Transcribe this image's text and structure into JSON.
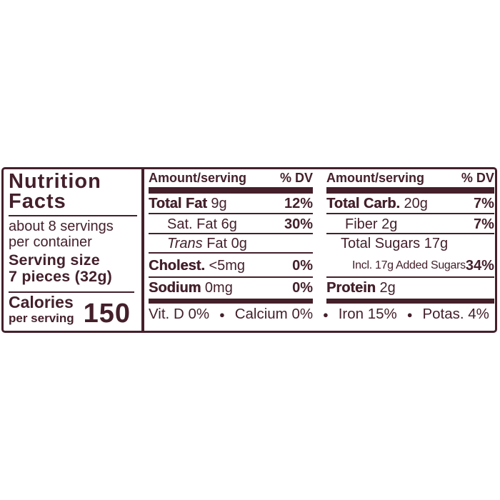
{
  "colors": {
    "ink": "#44202b",
    "background": "#ffffff"
  },
  "nutrition_panel": {
    "title_line1": "Nutrition",
    "title_line2": "Facts",
    "servings_line1": "about 8 servings",
    "servings_line2": "per container",
    "serving_size_label": "Serving size",
    "serving_size_value": "7 pieces (32g)",
    "calories_label": "Calories",
    "calories_sublabel": "per serving",
    "calories_value": "150"
  },
  "fat_column": {
    "header": {
      "amount": "Amount/serving",
      "dv": "% DV"
    },
    "rows": [
      {
        "name": "Total Fat",
        "amount": "9g",
        "dv": "12%"
      },
      {
        "name": "Sat. Fat",
        "amount": "6g",
        "dv": "30%"
      },
      {
        "name_italic": "Trans",
        "name": "Fat",
        "amount": "0g",
        "dv": ""
      },
      {
        "name": "Cholest.",
        "amount": "<5mg",
        "dv": "0%"
      },
      {
        "name": "Sodium",
        "amount": "0mg",
        "dv": "0%"
      }
    ]
  },
  "carb_column": {
    "header": {
      "amount": "Amount/serving",
      "dv": "% DV"
    },
    "rows": [
      {
        "name": "Total Carb.",
        "amount": "20g",
        "dv": "7%"
      },
      {
        "name": "Fiber",
        "amount": "2g",
        "dv": "7%"
      },
      {
        "name": "Total Sugars",
        "amount": "17g",
        "dv": ""
      },
      {
        "name": "Incl. 17g Added Sugars",
        "amount": "",
        "dv": "34%"
      },
      {
        "name": "Protein",
        "amount": "2g",
        "dv": ""
      }
    ]
  },
  "micronutrients": {
    "bullet": "●",
    "items": [
      "Vit. D 0%",
      "Calcium 0%",
      "Iron 15%",
      "Potas. 4%"
    ]
  }
}
